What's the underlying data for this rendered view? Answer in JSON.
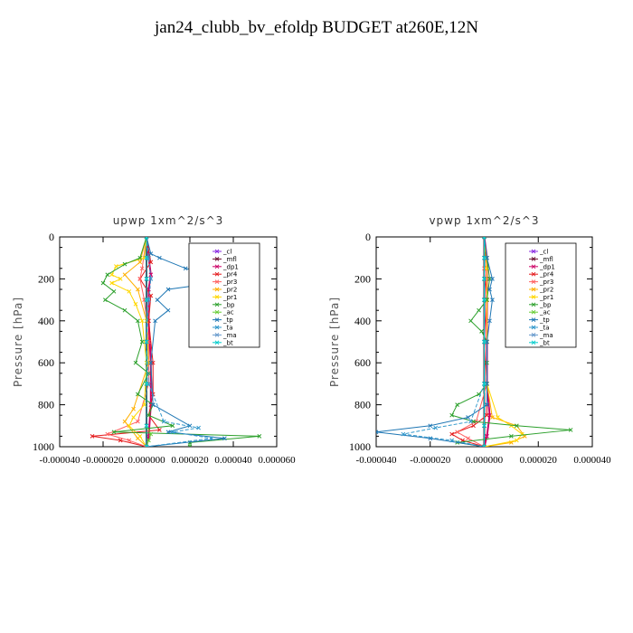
{
  "title": "jan24_clubb_bv_efoldp  BUDGET at260E,12N",
  "colors": {
    "_cl": "#8a2be2",
    "_mfl": "#6b1030",
    "_dp1": "#cc0066",
    "_pr4": "#e41a1c",
    "_pr3": "#ff6060",
    "_pr2": "#ffb000",
    "_pr1": "#ffd700",
    "_bp": "#2ca02c",
    "_ac": "#66cc33",
    "_tp": "#1f77b4",
    "_ta": "#3399cc",
    "_ma": "#6699cc",
    "_bt": "#00cccc"
  },
  "chart_data": [
    {
      "type": "line",
      "title": "upwp   1xm^2/s^3",
      "ylabel": "Pressure [hPa]",
      "xlabel": "",
      "xlim": [
        -4e-05,
        6e-05
      ],
      "ylim": [
        1000,
        0
      ],
      "x_ticks": [
        "-0.000040",
        "-0.000020",
        "0.000000",
        "0.000020",
        "0.000040",
        "0.000060"
      ],
      "x_tick_values": [
        -4e-05,
        -2e-05,
        0,
        2e-05,
        4e-05,
        6e-05
      ],
      "y_ticks": [
        0,
        200,
        400,
        600,
        800,
        1000
      ],
      "legend": [
        "_cl",
        "_mfl",
        "_dp1",
        "_pr4",
        "_pr3",
        "_pr2",
        "_pr1",
        "_bp",
        "_ac",
        "_tp",
        "_ta",
        "_ma",
        "_bt"
      ],
      "legend_position": "top-right",
      "series": [
        {
          "name": "_cl",
          "p": [
            0,
            100,
            200,
            300,
            500,
            700,
            900,
            1000
          ],
          "x": [
            0,
            0,
            0,
            0,
            0,
            0,
            0,
            0
          ]
        },
        {
          "name": "_mfl",
          "p": [
            0,
            100,
            200,
            300,
            500,
            700,
            900,
            1000
          ],
          "x": [
            0,
            0,
            0,
            0,
            0,
            0,
            0,
            0
          ]
        },
        {
          "name": "_dp1",
          "p": [
            0,
            100,
            180,
            250,
            400,
            600,
            800,
            950,
            1000
          ],
          "x": [
            0,
            1e-06,
            2e-06,
            1e-06,
            1e-06,
            2e-06,
            2e-06,
            1e-06,
            0
          ]
        },
        {
          "name": "_pr4",
          "p": [
            0,
            120,
            200,
            280,
            400,
            600,
            750,
            850,
            920,
            950,
            970,
            1000
          ],
          "x": [
            0,
            2e-06,
            -3e-06,
            2e-06,
            1e-06,
            3e-06,
            3e-06,
            1e-06,
            6e-06,
            -2.5e-05,
            -1.2e-05,
            0
          ]
        },
        {
          "name": "_pr3",
          "p": [
            0,
            150,
            200,
            300,
            500,
            700,
            880,
            940,
            970,
            1000
          ],
          "x": [
            0,
            -2e-06,
            -3e-06,
            -1e-06,
            1e-06,
            1e-06,
            -4e-06,
            -1.8e-05,
            -8e-06,
            0
          ]
        },
        {
          "name": "_pr2",
          "p": [
            0,
            120,
            180,
            250,
            400,
            600,
            820,
            880,
            960,
            1000
          ],
          "x": [
            0,
            -3e-06,
            -1e-05,
            -4e-06,
            0,
            1e-06,
            -6e-06,
            -1e-05,
            -4e-06,
            0
          ]
        },
        {
          "name": "_pr1",
          "p": [
            0,
            100,
            140,
            180,
            200,
            220,
            260,
            320,
            400,
            600,
            800,
            860,
            900,
            950,
            1000
          ],
          "x": [
            0,
            -1e-06,
            -1.4e-05,
            -1.6e-05,
            -1.2e-05,
            -1.6e-05,
            -8e-06,
            -5e-06,
            -2e-06,
            0,
            -1e-06,
            -6e-06,
            -8e-06,
            -3e-06,
            0
          ]
        },
        {
          "name": "_bp",
          "p": [
            0,
            100,
            130,
            180,
            220,
            260,
            300,
            350,
            400,
            500,
            600,
            650,
            750,
            800,
            850,
            900,
            930,
            950,
            980,
            1000
          ],
          "x": [
            0,
            -3e-06,
            -1e-05,
            -1.8e-05,
            -2e-05,
            -1.5e-05,
            -1.9e-05,
            -1e-05,
            -4e-06,
            -2e-06,
            -5e-06,
            1e-06,
            -4e-06,
            3e-06,
            1e-06,
            1.2e-05,
            -1.5e-05,
            5.2e-05,
            2e-05,
            2e-05
          ]
        },
        {
          "name": "_ac",
          "p": [
            0,
            100,
            200,
            300,
            500,
            700,
            900,
            940,
            970,
            1000
          ],
          "x": [
            0,
            0,
            0,
            0,
            0,
            0,
            0,
            2e-06,
            1e-06,
            0
          ]
        },
        {
          "name": "_tp",
          "p": [
            0,
            80,
            100,
            150,
            180,
            200,
            230,
            250,
            300,
            350,
            400,
            600,
            800,
            900,
            930,
            960,
            1000
          ],
          "x": [
            0,
            2e-06,
            6e-06,
            1.8e-05,
            3.2e-05,
            3.8e-05,
            2.4e-05,
            1e-05,
            5e-06,
            1e-05,
            4e-06,
            2e-06,
            3e-06,
            2e-05,
            1e-05,
            3.6e-05,
            0
          ]
        },
        {
          "name": "_ta",
          "p": [
            0,
            100,
            200,
            300,
            500,
            700,
            880,
            910,
            930,
            960,
            1000
          ],
          "x": [
            0,
            1e-06,
            2e-06,
            1e-06,
            0,
            1e-06,
            8e-06,
            2.4e-05,
            1.2e-05,
            3e-05,
            0
          ]
        },
        {
          "name": "_ma",
          "p": [
            0,
            100,
            200,
            300,
            500,
            700,
            900,
            1000
          ],
          "x": [
            0,
            0,
            0,
            0,
            0,
            0,
            0,
            0
          ]
        },
        {
          "name": "_bt",
          "p": [
            0,
            100,
            200,
            300,
            500,
            700,
            900,
            1000
          ],
          "x": [
            0,
            0,
            0,
            0,
            0,
            0,
            0,
            0
          ]
        }
      ]
    },
    {
      "type": "line",
      "title": "vpwp   1xm^2/s^3",
      "ylabel": "Pressure [hPa]",
      "xlabel": "",
      "xlim": [
        -4e-05,
        4e-05
      ],
      "ylim": [
        1000,
        0
      ],
      "x_ticks": [
        "-0.000040",
        "-0.000020",
        "0.000000",
        "0.000020",
        "0.000040"
      ],
      "x_tick_values": [
        -4e-05,
        -2e-05,
        0,
        2e-05,
        4e-05
      ],
      "y_ticks": [
        0,
        200,
        400,
        600,
        800,
        1000
      ],
      "legend": [
        "_cl",
        "_mfl",
        "_dp1",
        "_pr4",
        "_pr3",
        "_pr2",
        "_pr1",
        "_bp",
        "_ac",
        "_tp",
        "_ta",
        "_ma",
        "_bt"
      ],
      "legend_position": "top-right",
      "series": [
        {
          "name": "_cl",
          "p": [
            0,
            100,
            200,
            300,
            500,
            700,
            900,
            1000
          ],
          "x": [
            0,
            0,
            0,
            0,
            0,
            0,
            0,
            0
          ]
        },
        {
          "name": "_mfl",
          "p": [
            0,
            100,
            200,
            300,
            500,
            700,
            900,
            1000
          ],
          "x": [
            0,
            0,
            0,
            0,
            0,
            0,
            0,
            0
          ]
        },
        {
          "name": "_dp1",
          "p": [
            0,
            100,
            200,
            300,
            500,
            700,
            850,
            950,
            1000
          ],
          "x": [
            0,
            1e-06,
            1e-06,
            1e-06,
            1e-06,
            1e-06,
            2e-06,
            1e-06,
            0
          ]
        },
        {
          "name": "_pr4",
          "p": [
            0,
            150,
            300,
            500,
            700,
            850,
            900,
            940,
            970,
            1000
          ],
          "x": [
            0,
            1e-06,
            1e-06,
            1e-06,
            1e-06,
            1e-06,
            -4e-06,
            -1.2e-05,
            -8e-06,
            0
          ]
        },
        {
          "name": "_pr3",
          "p": [
            0,
            150,
            300,
            500,
            700,
            880,
            930,
            960,
            1000
          ],
          "x": [
            0,
            0,
            1e-06,
            0,
            1e-06,
            -3e-06,
            -1e-05,
            -6e-06,
            0
          ]
        },
        {
          "name": "_pr2",
          "p": [
            0,
            150,
            300,
            500,
            700,
            860,
            900,
            950,
            980,
            1000
          ],
          "x": [
            0,
            1e-06,
            1e-06,
            1e-06,
            1e-06,
            3e-06,
            1.2e-05,
            1.5e-05,
            1e-05,
            0
          ]
        },
        {
          "name": "_pr1",
          "p": [
            0,
            150,
            300,
            500,
            700,
            860,
            900,
            940,
            970,
            1000
          ],
          "x": [
            0,
            1e-06,
            1e-06,
            1e-06,
            1e-06,
            5e-06,
            1e-05,
            1.4e-05,
            1.2e-05,
            0
          ]
        },
        {
          "name": "_bp",
          "p": [
            0,
            100,
            200,
            300,
            350,
            400,
            450,
            500,
            600,
            700,
            750,
            800,
            850,
            880,
            900,
            920,
            950,
            980,
            1000
          ],
          "x": [
            0,
            1e-06,
            2e-06,
            1e-06,
            -2e-06,
            -5e-06,
            -1e-06,
            1e-06,
            1e-06,
            1e-06,
            -2e-06,
            -1e-05,
            -1.2e-05,
            -4e-06,
            1.2e-05,
            3.2e-05,
            1e-05,
            -1e-05,
            0
          ]
        },
        {
          "name": "_ac",
          "p": [
            0,
            100,
            200,
            300,
            500,
            700,
            900,
            1000
          ],
          "x": [
            0,
            0,
            0,
            0,
            0,
            0,
            0,
            0
          ]
        },
        {
          "name": "_tp",
          "p": [
            0,
            100,
            200,
            250,
            300,
            400,
            500,
            700,
            800,
            860,
            900,
            930,
            960,
            1000
          ],
          "x": [
            0,
            1e-06,
            3e-06,
            2e-06,
            3e-06,
            2e-06,
            1e-06,
            1e-06,
            1e-06,
            -6e-06,
            -2e-05,
            -4e-05,
            -2e-05,
            0
          ]
        },
        {
          "name": "_ta",
          "p": [
            0,
            100,
            300,
            500,
            700,
            880,
            910,
            940,
            970,
            1000
          ],
          "x": [
            0,
            0,
            0,
            0,
            0,
            -5e-06,
            -1.8e-05,
            -3e-05,
            -1.2e-05,
            0
          ]
        },
        {
          "name": "_ma",
          "p": [
            0,
            100,
            200,
            300,
            500,
            700,
            900,
            1000
          ],
          "x": [
            0,
            0,
            0,
            0,
            0,
            0,
            0,
            0
          ]
        },
        {
          "name": "_bt",
          "p": [
            0,
            100,
            200,
            300,
            500,
            700,
            900,
            1000
          ],
          "x": [
            0,
            0,
            0,
            0,
            0,
            0,
            0,
            0
          ]
        }
      ]
    }
  ]
}
